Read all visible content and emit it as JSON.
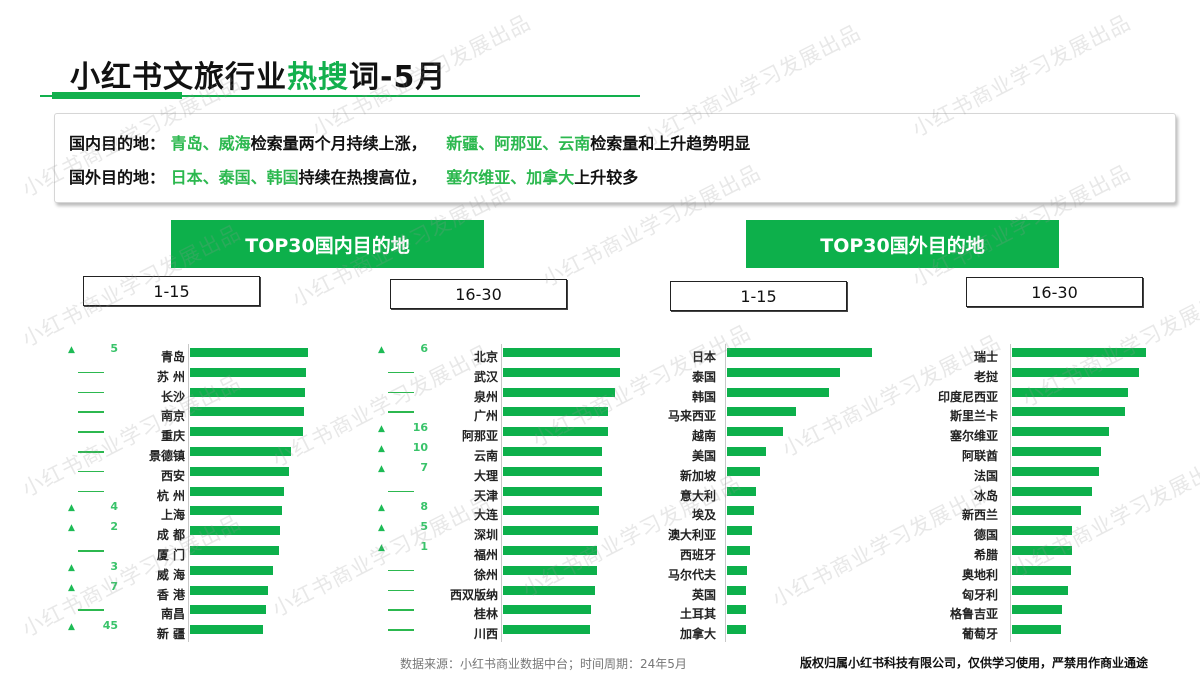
{
  "title": {
    "prefix": "小红书文旅行业",
    "highlight": "热搜",
    "suffix": "词-5月"
  },
  "summary": {
    "domestic": {
      "label": "国内目的地：",
      "green1": "青岛、威海",
      "text1": "检索量两个月持续上涨，",
      "green2": "新疆、阿那亚、云南",
      "text2": "检索量和上升趋势明显"
    },
    "overseas": {
      "label": "国外目的地：",
      "green1": "日本、泰国、韩国",
      "text1": "持续在热搜高位，",
      "green2": "塞尔维亚、加拿大",
      "text2": "上升较多"
    }
  },
  "sections": {
    "domestic_title": "TOP30国内目的地",
    "overseas_title": "TOP30国外目的地",
    "range_1": "1-15",
    "range_2": "16-30"
  },
  "colors": {
    "accent": "#0db04b",
    "change_green": "#39c36a",
    "text": "#111111"
  },
  "chart_data": [
    {
      "type": "bar",
      "title": "TOP30国内目的地 1-15",
      "orientation": "horizontal",
      "categories": [
        "青岛",
        "苏 州",
        "长沙",
        "南京",
        "重庆",
        "景德镇",
        "西安",
        "杭 州",
        "上海",
        "成 都",
        "厦 门",
        "威 海",
        "香 港",
        "南昌",
        "新 疆"
      ],
      "values": [
        118,
        116,
        115,
        114,
        113,
        101,
        99,
        94,
        92,
        90,
        89,
        83,
        78,
        76,
        73
      ],
      "rank_change": [
        "▲5",
        "—",
        "—",
        "—",
        "—",
        "—",
        "—",
        "—",
        "▲4",
        "▲2",
        "—",
        "▲3",
        "▲7",
        "—",
        "▲45"
      ],
      "xlabel": "",
      "ylabel": "",
      "grid": false
    },
    {
      "type": "bar",
      "title": "TOP30国内目的地 16-30",
      "orientation": "horizontal",
      "categories": [
        "北京",
        "武汉",
        "泉州",
        "广州",
        "阿那亚",
        "云南",
        "大理",
        "天津",
        "大连",
        "深圳",
        "福州",
        "徐州",
        "西双版纳",
        "桂林",
        "川西"
      ],
      "values": [
        117,
        117,
        112,
        105,
        105,
        99,
        99,
        99,
        96,
        95,
        94,
        94,
        92,
        88,
        87
      ],
      "rank_change": [
        "▲6",
        "—",
        "—",
        "—",
        "▲16",
        "▲10",
        "▲7",
        "—",
        "▲8",
        "▲5",
        "▲1",
        "—",
        "—",
        "—",
        "—"
      ],
      "xlabel": "",
      "ylabel": "",
      "grid": false
    },
    {
      "type": "bar",
      "title": "TOP30国外目的地 1-15",
      "orientation": "horizontal",
      "categories": [
        "日本",
        "泰国",
        "韩国",
        "马来西亚",
        "越南",
        "美国",
        "新加坡",
        "意大利",
        "埃及",
        "澳大利亚",
        "西班牙",
        "马尔代夫",
        "英国",
        "土耳其",
        "加拿大"
      ],
      "values": [
        145,
        113,
        102,
        69,
        56,
        39,
        33,
        29,
        27,
        25,
        23,
        20,
        19,
        19,
        19
      ],
      "xlabel": "",
      "ylabel": "",
      "grid": false
    },
    {
      "type": "bar",
      "title": "TOP30国外目的地 16-30",
      "orientation": "horizontal",
      "categories": [
        "瑞士",
        "老挝",
        "印度尼西亚",
        "斯里兰卡",
        "塞尔维亚",
        "阿联酋",
        "法国",
        "冰岛",
        "新西兰",
        "德国",
        "希腊",
        "奥地利",
        "匈牙利",
        "格鲁吉亚",
        "葡萄牙"
      ],
      "values": [
        134,
        127,
        116,
        113,
        97,
        89,
        87,
        80,
        69,
        60,
        60,
        59,
        56,
        50,
        49
      ],
      "xlabel": "",
      "ylabel": "",
      "grid": false
    }
  ],
  "footer": {
    "source": "数据来源：小红书商业数据中台；时间周期：24年5月",
    "copyright": "版权归属小红书科技有限公司，仅供学习使用，严禁用作商业通途"
  },
  "watermark": "小红书商业学习发展出品"
}
